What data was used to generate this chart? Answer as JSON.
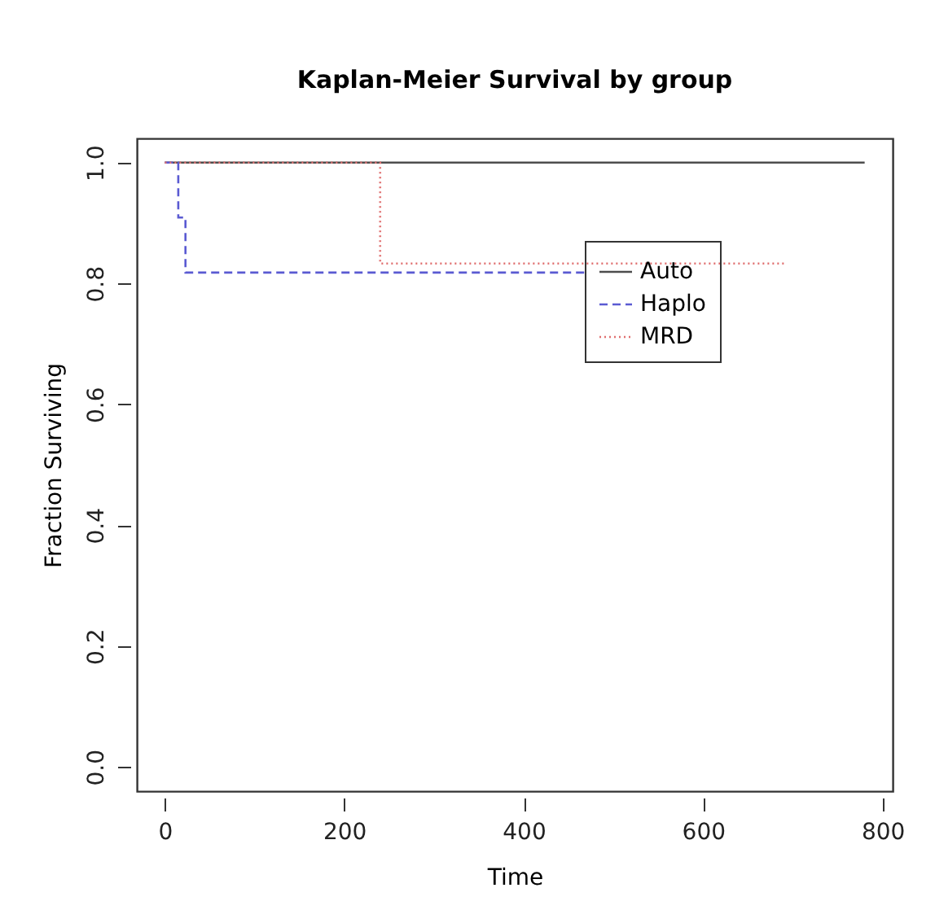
{
  "chart_data": {
    "type": "step",
    "title": "Kaplan-Meier Survival by group",
    "xlabel": "Time",
    "ylabel": "Fraction Surviving",
    "xlim": [
      -31.2,
      811.2
    ],
    "xticks": [
      0,
      200,
      400,
      600,
      800
    ],
    "ylim": [
      -0.04,
      1.04
    ],
    "yticks": [
      {
        "value": 0,
        "label": "0.0"
      },
      {
        "value": 0.2,
        "label": "0.2"
      },
      {
        "value": 0.4,
        "label": "0.4"
      },
      {
        "value": 0.6,
        "label": "0.6"
      },
      {
        "value": 0.8,
        "label": "0.8"
      },
      {
        "value": 1,
        "label": "1.0"
      }
    ],
    "grid": false,
    "legend": "top right",
    "series": [
      {
        "name": "Auto",
        "color": "#4d4d4d",
        "line_style": "solid",
        "x": [
          0,
          780
        ],
        "values": [
          1,
          1
        ]
      },
      {
        "name": "Haplo",
        "color": "#5a5ad2",
        "line_style": "dashed",
        "x": [
          0,
          15,
          23,
          468
        ],
        "values": [
          1,
          0.909,
          0.818,
          0.818
        ]
      },
      {
        "name": "MRD",
        "color": "#e07070",
        "line_style": "dotted",
        "x": [
          0,
          240,
          690
        ],
        "values": [
          1,
          0.833,
          0.833
        ]
      }
    ]
  }
}
